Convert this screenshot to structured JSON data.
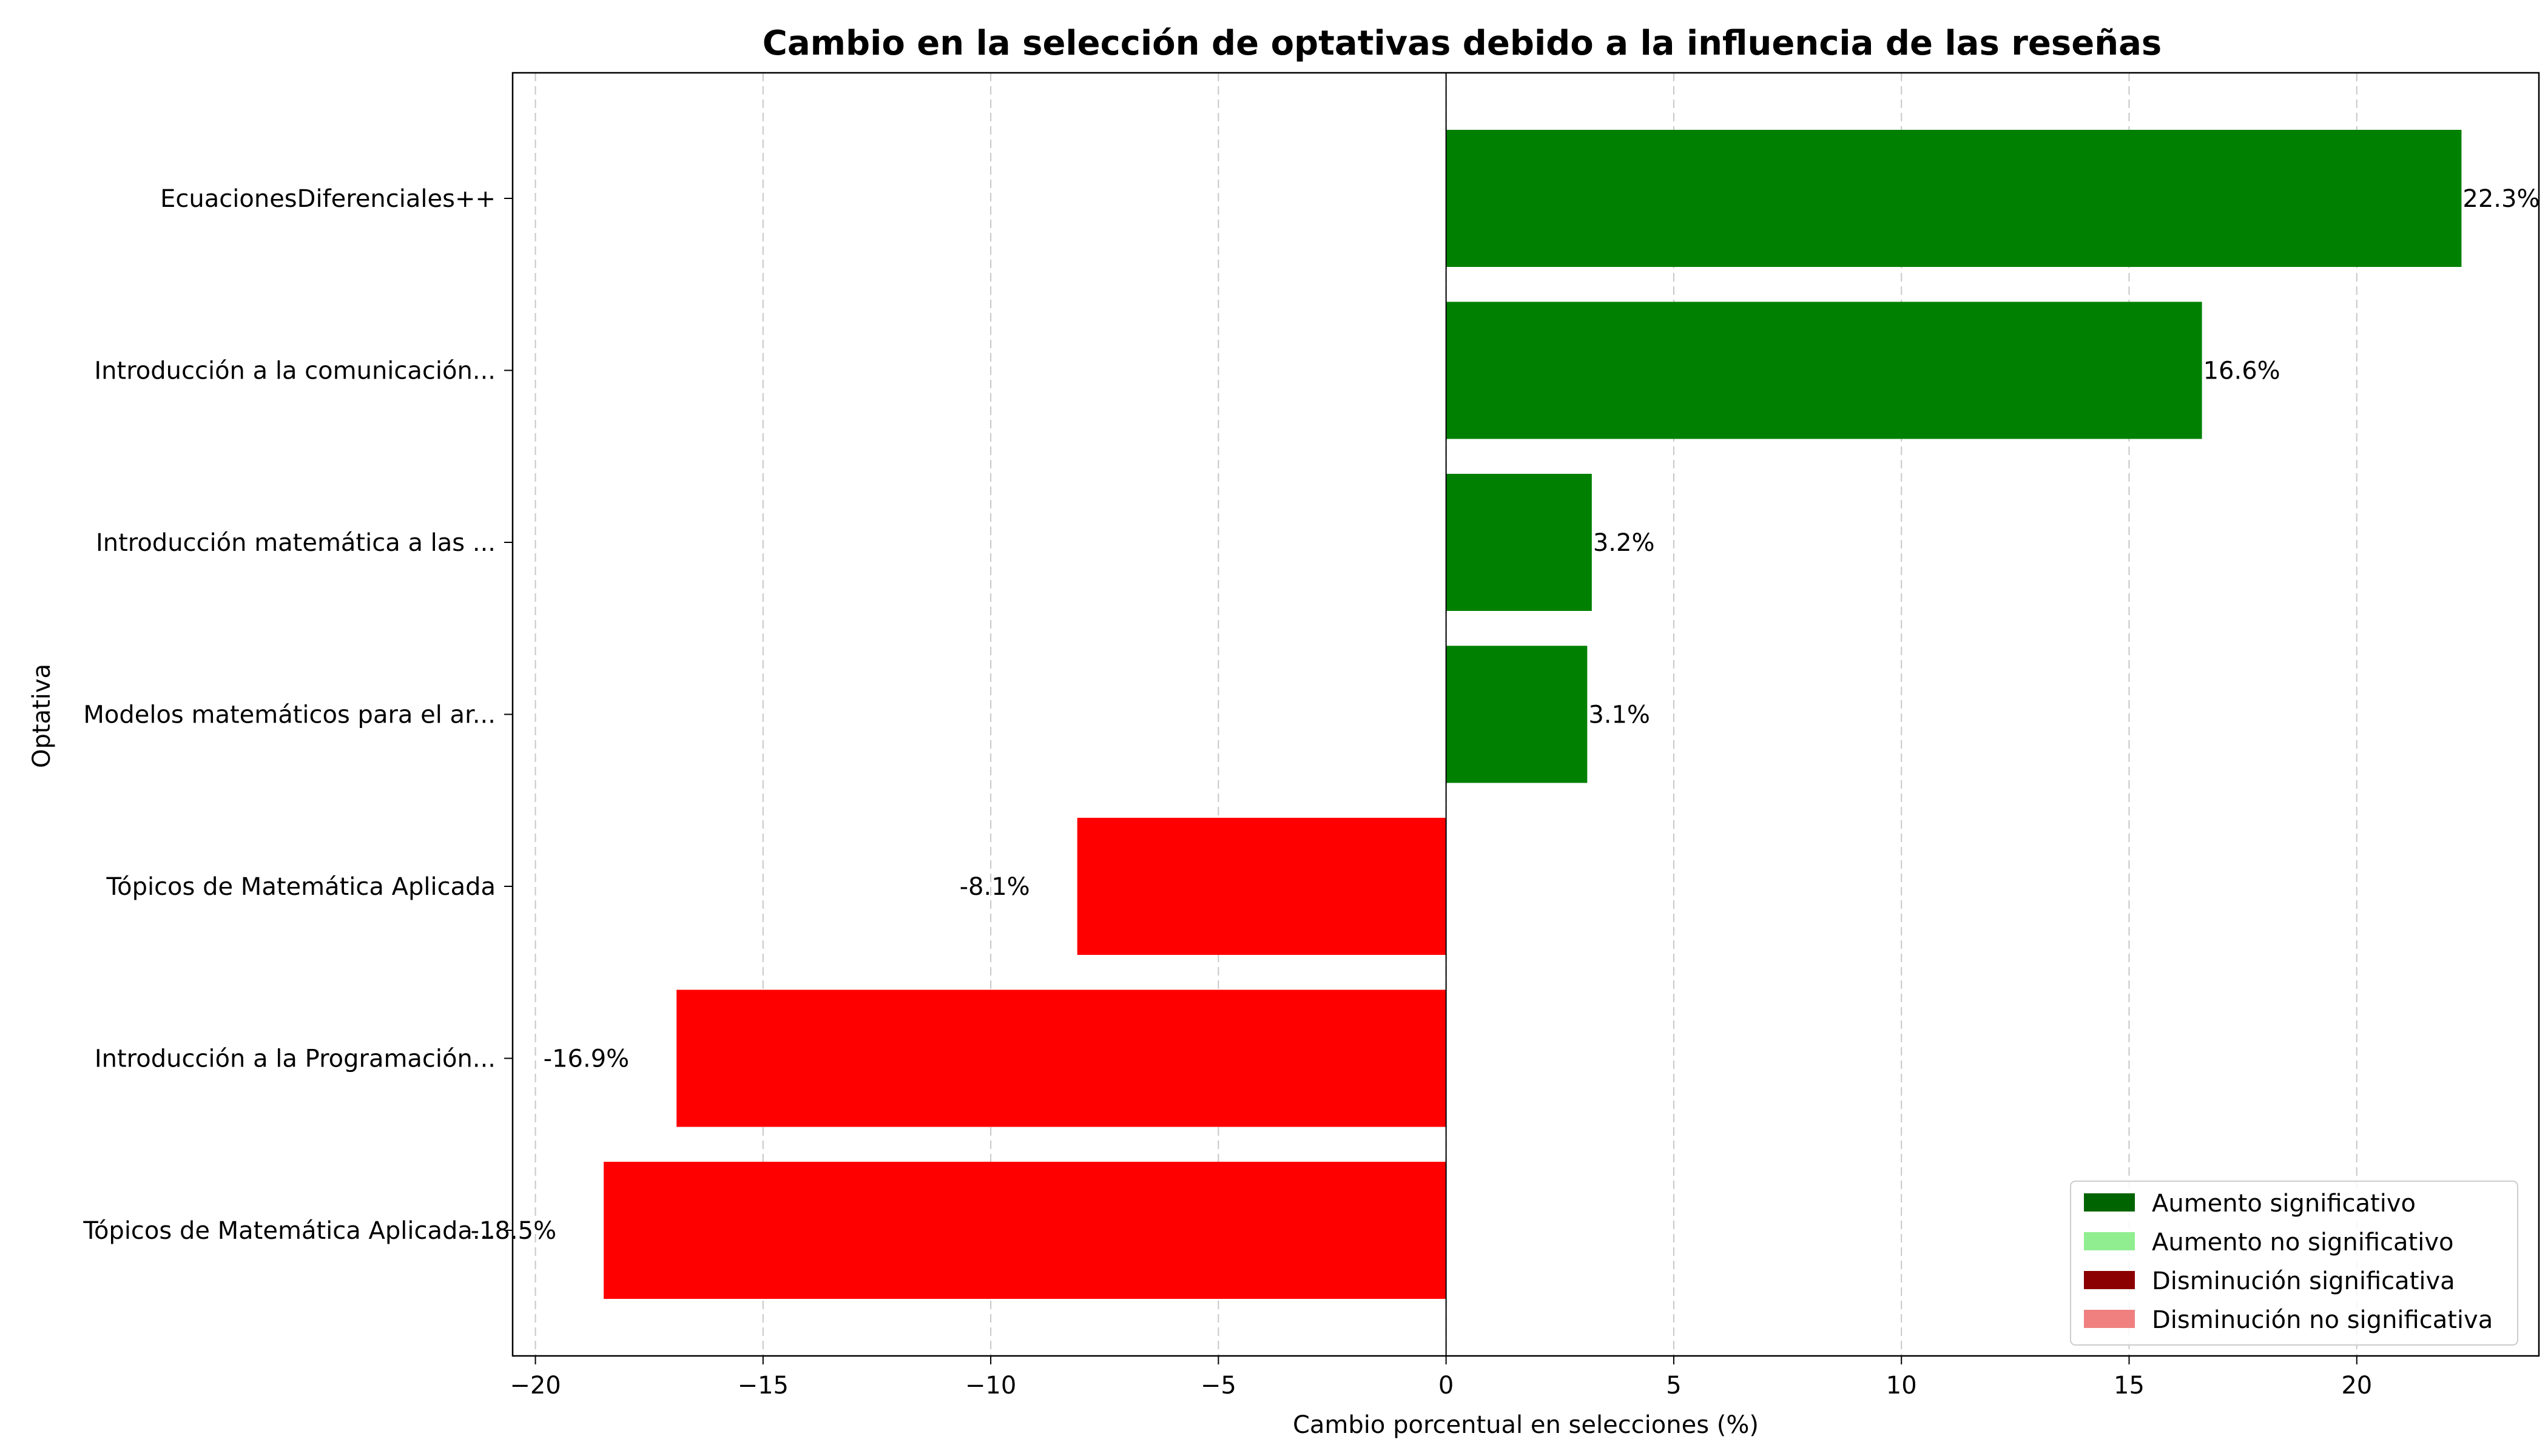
{
  "chart_data": {
    "type": "bar",
    "orientation": "horizontal",
    "title": "Cambio en la selección de optativas debido a la influencia de las reseñas",
    "xlabel": "Cambio porcentual en selecciones (%)",
    "ylabel": "Optativa",
    "xlim": [
      -20.5,
      24.0
    ],
    "x_ticks": [
      -20,
      -15,
      -10,
      -5,
      0,
      5,
      10,
      15,
      20
    ],
    "x_tick_labels": [
      "−20",
      "−15",
      "−10",
      "−5",
      "0",
      "5",
      "10",
      "15",
      "20"
    ],
    "grid": "x-dashed",
    "categories": [
      "EcuacionesDiferenciales++",
      "Introducción a la comunicación...",
      "Introducción matemática a las ...",
      "Modelos matemáticos para el ar...",
      "Tópicos de Matemática Aplicada",
      "Introducción a la Programación...",
      "Tópicos de Matemática Aplicada..."
    ],
    "values": [
      22.3,
      16.6,
      3.2,
      3.1,
      -8.1,
      -16.9,
      -18.5
    ],
    "value_labels": [
      "22.3%",
      "16.6%",
      "3.2%",
      "3.1%",
      "-8.1%",
      "-16.9%",
      "-18.5%"
    ],
    "bar_colors": [
      "#008000",
      "#008000",
      "#008000",
      "#008000",
      "#ff0000",
      "#ff0000",
      "#ff0000"
    ],
    "legend": {
      "placement": "lower-right",
      "entries": [
        {
          "label": "Aumento significativo",
          "color": "#006400"
        },
        {
          "label": "Aumento no significativo",
          "color": "#90ee90"
        },
        {
          "label": "Disminución significativa",
          "color": "#8b0000"
        },
        {
          "label": "Disminución no significativa",
          "color": "#f08080"
        }
      ]
    }
  }
}
